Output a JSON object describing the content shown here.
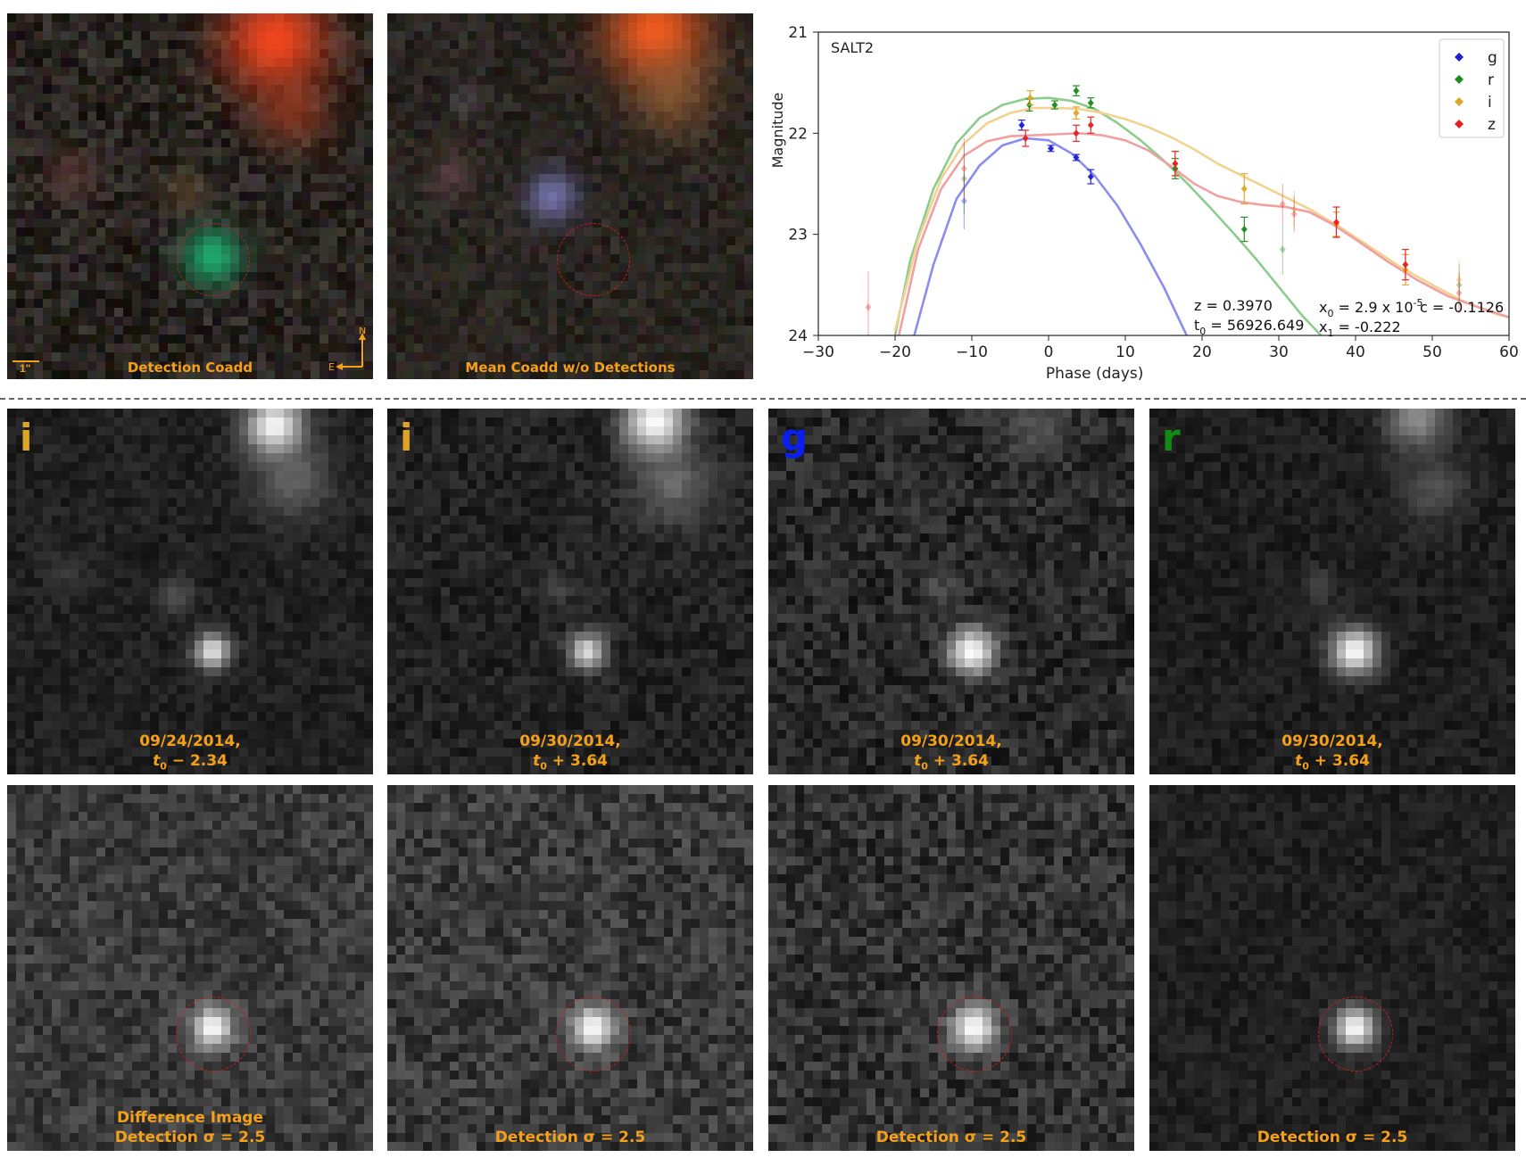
{
  "top_row": {
    "detection_coadd": {
      "caption": "Detection Coadd",
      "scale_label": "1\"",
      "compass_n": "N",
      "compass_e": "E"
    },
    "mean_coadd": {
      "caption": "Mean Coadd w/o Detections"
    }
  },
  "epoch_row": [
    {
      "band": "i",
      "band_color": "#e0a424",
      "date": "09/24/2014,",
      "phase_sign": "−",
      "phase": "2.34"
    },
    {
      "band": "i",
      "band_color": "#e0a424",
      "date": "09/30/2014,",
      "phase_sign": "+",
      "phase": "3.64"
    },
    {
      "band": "g",
      "band_color": "#0a1ef0",
      "date": "09/30/2014,",
      "phase_sign": "+",
      "phase": "3.64"
    },
    {
      "band": "r",
      "band_color": "#138a13",
      "date": "09/30/2014,",
      "phase_sign": "+",
      "phase": "3.64"
    }
  ],
  "t0_symbol": "t",
  "t0_sub": "0",
  "diff_row": [
    {
      "caption_line1": "Difference Image",
      "caption_line2": "Detection σ = 2.5"
    },
    {
      "caption_line1": "",
      "caption_line2": "Detection σ = 2.5"
    },
    {
      "caption_line1": "",
      "caption_line2": "Detection σ = 2.5"
    },
    {
      "caption_line1": "",
      "caption_line2": "Detection σ = 2.5"
    }
  ],
  "chart_data": {
    "type": "scatter",
    "annotation_model": "SALT2",
    "xlabel": "Phase (days)",
    "ylabel": "Magnitude",
    "xlim": [
      -30,
      60
    ],
    "ylim": [
      24,
      21
    ],
    "y_inverted": true,
    "xticks": [
      -30,
      -20,
      -10,
      0,
      10,
      20,
      30,
      40,
      50,
      60
    ],
    "xtick_labels": [
      "−30",
      "−20",
      "−10",
      "0",
      "10",
      "20",
      "30",
      "40",
      "50",
      "60"
    ],
    "yticks": [
      21,
      22,
      23,
      24
    ],
    "legend_position": "top-right",
    "fit_text": {
      "z": "z = 0.3970",
      "t0": "= 56926.649",
      "x0": "= 2.9 x 10",
      "x0_exp": "-5",
      "x1": "= -0.222",
      "c": "c = -0.1126"
    },
    "series": [
      {
        "name": "g",
        "color": "#1f1fd6",
        "fit_color": "#8c8cf0",
        "points": [
          [
            -3.5,
            21.92,
            0.05
          ],
          [
            0.3,
            22.15,
            0.03
          ],
          [
            3.6,
            22.24,
            0.03
          ],
          [
            5.5,
            22.43,
            0.07
          ],
          [
            -11,
            22.67,
            0.28
          ]
        ],
        "fit": [
          [
            -17.5,
            24
          ],
          [
            -15,
            23.3
          ],
          [
            -12,
            22.65
          ],
          [
            -9,
            22.32
          ],
          [
            -6,
            22.12
          ],
          [
            -3,
            22.05
          ],
          [
            0,
            22.07
          ],
          [
            3,
            22.2
          ],
          [
            6,
            22.42
          ],
          [
            9,
            22.72
          ],
          [
            12,
            23.1
          ],
          [
            15,
            23.52
          ],
          [
            18,
            24.0
          ]
        ]
      },
      {
        "name": "r",
        "color": "#1f8a1f",
        "fit_color": "#8ccc8c",
        "points": [
          [
            -11,
            22.45,
            0.35
          ],
          [
            -2.5,
            21.72,
            0.06
          ],
          [
            0.8,
            21.72,
            0.04
          ],
          [
            3.6,
            21.58,
            0.05
          ],
          [
            5.5,
            21.7,
            0.05
          ],
          [
            16.5,
            22.35,
            0.1
          ],
          [
            25.5,
            22.95,
            0.12
          ],
          [
            30.5,
            23.15,
            0.25
          ],
          [
            53.5,
            23.5,
            0.2
          ]
        ],
        "fit": [
          [
            -20,
            24
          ],
          [
            -18,
            23.25
          ],
          [
            -15,
            22.55
          ],
          [
            -12,
            22.1
          ],
          [
            -9,
            21.85
          ],
          [
            -6,
            21.72
          ],
          [
            -3,
            21.66
          ],
          [
            0,
            21.65
          ],
          [
            3,
            21.68
          ],
          [
            6,
            21.76
          ],
          [
            9,
            21.9
          ],
          [
            12,
            22.07
          ],
          [
            15,
            22.27
          ],
          [
            18,
            22.49
          ],
          [
            21,
            22.73
          ],
          [
            24,
            22.98
          ],
          [
            27,
            23.24
          ],
          [
            30,
            23.52
          ],
          [
            33,
            23.8
          ],
          [
            35.5,
            24.0
          ]
        ]
      },
      {
        "name": "i",
        "color": "#e0a424",
        "fit_color": "#f2d290",
        "points": [
          [
            -2.4,
            21.65,
            0.07
          ],
          [
            3.6,
            21.8,
            0.06
          ],
          [
            16.5,
            22.3,
            0.12
          ],
          [
            25.5,
            22.55,
            0.15
          ],
          [
            32,
            22.75,
            0.18
          ],
          [
            37.5,
            22.9,
            0.12
          ],
          [
            46.5,
            23.35,
            0.15
          ],
          [
            53.5,
            23.45,
            0.2
          ]
        ],
        "fit": [
          [
            -20,
            23.95
          ],
          [
            -17,
            23.05
          ],
          [
            -14,
            22.45
          ],
          [
            -11,
            22.1
          ],
          [
            -8,
            21.9
          ],
          [
            -5,
            21.8
          ],
          [
            -2,
            21.75
          ],
          [
            1,
            21.75
          ],
          [
            4,
            21.76
          ],
          [
            7,
            21.8
          ],
          [
            10,
            21.86
          ],
          [
            13,
            21.94
          ],
          [
            16,
            22.04
          ],
          [
            19,
            22.16
          ],
          [
            22,
            22.3
          ],
          [
            26,
            22.45
          ],
          [
            30,
            22.6
          ],
          [
            34,
            22.75
          ],
          [
            38,
            22.93
          ],
          [
            42,
            23.13
          ],
          [
            46,
            23.33
          ],
          [
            50,
            23.5
          ],
          [
            54,
            23.66
          ],
          [
            58,
            23.78
          ],
          [
            60,
            23.82
          ]
        ]
      },
      {
        "name": "z",
        "color": "#e62020",
        "fit_color": "#f0a0a0",
        "points": [
          [
            -23.5,
            23.72,
            0.35
          ],
          [
            -11,
            22.35,
            0.3
          ],
          [
            -3,
            22.05,
            0.08
          ],
          [
            3.6,
            22.0,
            0.08
          ],
          [
            5.5,
            21.92,
            0.08
          ],
          [
            16.5,
            22.3,
            0.12
          ],
          [
            30.5,
            22.7,
            0.2
          ],
          [
            32,
            22.8,
            0.18
          ],
          [
            37.5,
            22.88,
            0.15
          ],
          [
            46.5,
            23.3,
            0.15
          ],
          [
            53.5,
            23.58,
            0.2
          ]
        ],
        "fit": [
          [
            -19.5,
            24
          ],
          [
            -17,
            23.15
          ],
          [
            -14,
            22.55
          ],
          [
            -11,
            22.22
          ],
          [
            -8,
            22.08
          ],
          [
            -5,
            22.03
          ],
          [
            -2,
            22.02
          ],
          [
            1,
            22.01
          ],
          [
            4,
            22.0
          ],
          [
            7,
            22.02
          ],
          [
            10,
            22.07
          ],
          [
            13,
            22.17
          ],
          [
            16,
            22.33
          ],
          [
            19,
            22.5
          ],
          [
            22,
            22.62
          ],
          [
            25,
            22.68
          ],
          [
            28,
            22.71
          ],
          [
            31,
            22.73
          ],
          [
            34,
            22.78
          ],
          [
            37,
            22.9
          ],
          [
            40,
            23.05
          ],
          [
            44,
            23.26
          ],
          [
            48,
            23.45
          ],
          [
            52,
            23.61
          ],
          [
            56,
            23.72
          ],
          [
            60,
            23.82
          ]
        ]
      }
    ]
  }
}
